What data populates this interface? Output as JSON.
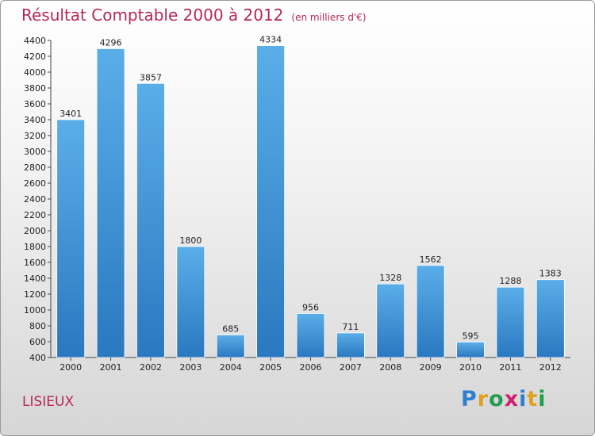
{
  "header": {
    "title": "Résultat Comptable 2000 à 2012",
    "subtitle": "(en milliers d'€)"
  },
  "footer": {
    "city": "LISIEUX",
    "logo_letters": [
      {
        "ch": "P",
        "color": "#2f7fd0"
      },
      {
        "ch": "r",
        "color": "#e0a020"
      },
      {
        "ch": "o",
        "color": "#1f9f4f"
      },
      {
        "ch": "x",
        "color": "#d02070"
      },
      {
        "ch": "i",
        "color": "#2f7fd0"
      },
      {
        "ch": "t",
        "color": "#e0a020"
      },
      {
        "ch": "i",
        "color": "#1f9f4f"
      }
    ]
  },
  "colors": {
    "bar_top": "#5aaee8",
    "bar_bottom": "#2a78c0",
    "title": "#b5285a"
  },
  "chart_data": {
    "type": "bar",
    "title": "Résultat Comptable 2000 à 2012",
    "subtitle": "(en milliers d'€)",
    "xlabel": "",
    "ylabel": "",
    "categories": [
      "2000",
      "2001",
      "2002",
      "2003",
      "2004",
      "2005",
      "2006",
      "2007",
      "2008",
      "2009",
      "2010",
      "2011",
      "2012"
    ],
    "values": [
      3401,
      4296,
      3857,
      1800,
      685,
      4334,
      956,
      711,
      1328,
      1562,
      595,
      1288,
      1383
    ],
    "ylim": [
      400,
      4400
    ],
    "ytick_step": 200,
    "grid": false,
    "legend": "none"
  }
}
